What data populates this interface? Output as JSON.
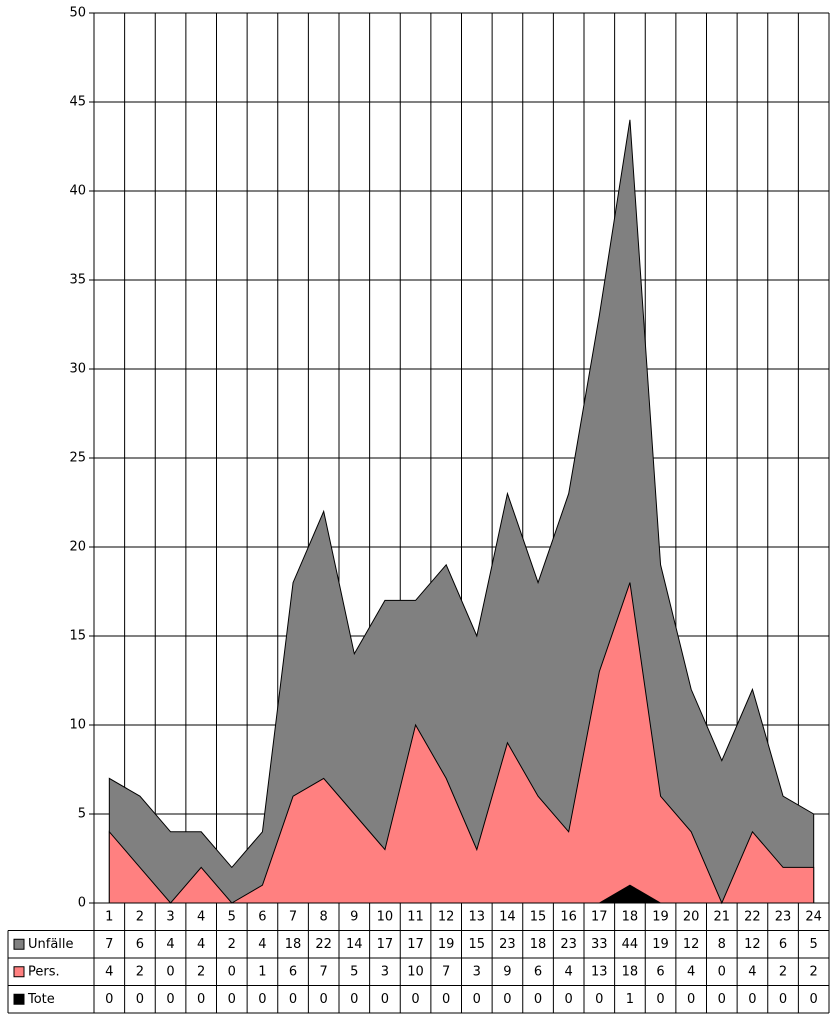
{
  "chart_data": {
    "type": "area",
    "categories": [
      "1",
      "2",
      "3",
      "4",
      "5",
      "6",
      "7",
      "8",
      "9",
      "10",
      "11",
      "12",
      "13",
      "14",
      "15",
      "16",
      "17",
      "18",
      "19",
      "20",
      "21",
      "22",
      "23",
      "24"
    ],
    "series": [
      {
        "name": "Unfälle",
        "color": "#808080",
        "values": [
          7,
          6,
          4,
          4,
          2,
          4,
          18,
          22,
          14,
          17,
          17,
          19,
          15,
          23,
          18,
          23,
          33,
          44,
          19,
          12,
          8,
          12,
          6,
          5
        ]
      },
      {
        "name": "Pers.",
        "color": "#ff8080",
        "values": [
          4,
          2,
          0,
          2,
          0,
          1,
          6,
          7,
          5,
          3,
          10,
          7,
          3,
          9,
          6,
          4,
          13,
          18,
          6,
          4,
          0,
          4,
          2,
          2
        ]
      },
      {
        "name": "Tote",
        "color": "#000000",
        "values": [
          0,
          0,
          0,
          0,
          0,
          0,
          0,
          0,
          0,
          0,
          0,
          0,
          0,
          0,
          0,
          0,
          0,
          1,
          0,
          0,
          0,
          0,
          0,
          0
        ]
      }
    ],
    "ylim": [
      0,
      50
    ],
    "yticks": [
      0,
      5,
      10,
      15,
      20,
      25,
      30,
      35,
      40,
      45,
      50
    ],
    "grid": true
  }
}
